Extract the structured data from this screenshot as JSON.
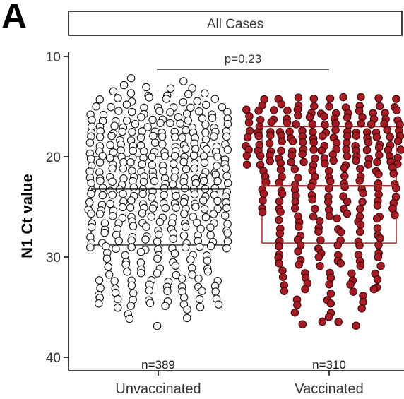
{
  "panel_label": "A",
  "chart_data": {
    "type": "scatter",
    "subtype": "beeswarm with boxplot",
    "title": "All Cases",
    "xlabel": "",
    "ylabel": "N1 Ct value",
    "y_reversed": true,
    "ylim": [
      10,
      41
    ],
    "yticks": [
      10,
      20,
      30,
      40
    ],
    "categories": [
      "Unvaccinated",
      "Vaccinated"
    ],
    "grid": false,
    "legend": "none",
    "groups": [
      {
        "name": "Unvaccinated",
        "n_label": "n=389",
        "n": 389,
        "box": {
          "q1": 20.0,
          "median": 23.2,
          "q3": 28.8
        },
        "min": 12.4,
        "max": 38.2,
        "marker_fill": "#ffffff",
        "marker_stroke": "#111111",
        "box_color": "#333333"
      },
      {
        "name": "Vaccinated",
        "n_label": "n=310",
        "n": 310,
        "box": {
          "q1": 17.0,
          "median": 22.9,
          "q3": 28.6
        },
        "min": 14.2,
        "max": 36.8,
        "marker_fill": "#a51c24",
        "marker_stroke": "#3a0608",
        "box_color": "#b02a30"
      }
    ],
    "comparison": {
      "between": [
        "Unvaccinated",
        "Vaccinated"
      ],
      "label": "p=0.23"
    }
  }
}
